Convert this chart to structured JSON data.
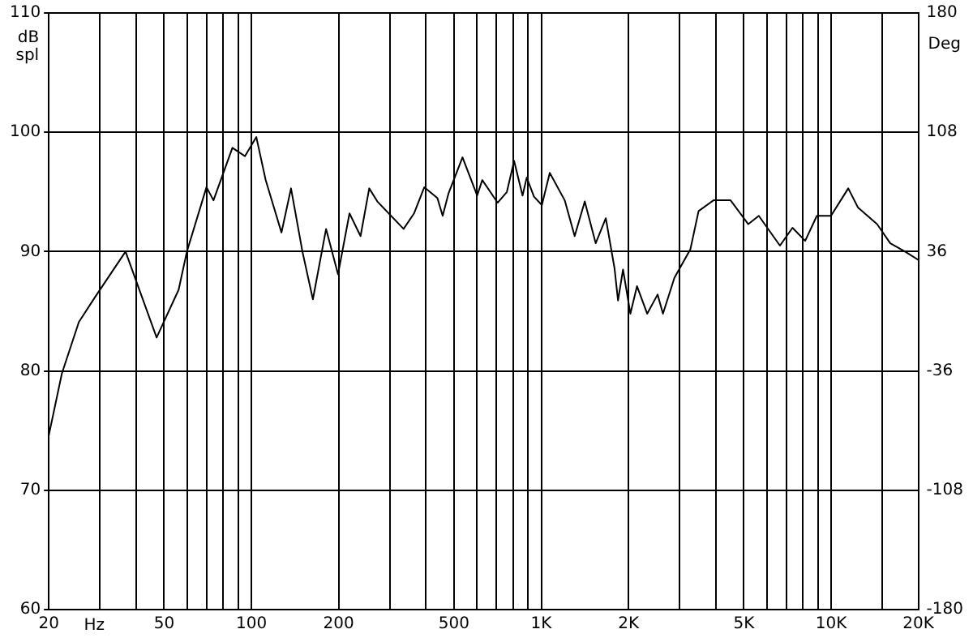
{
  "chart_data": {
    "type": "line",
    "xlabel": "Hz",
    "ylabel": "dB spl",
    "y2label": "Deg",
    "log": "x",
    "grid": true,
    "legend": false,
    "marker": "none",
    "line_style": "solid",
    "xlim": [
      20,
      20000
    ],
    "xticks": [
      20,
      {
        "value": 30,
        "label": null
      },
      {
        "value": 40,
        "label": null
      },
      50,
      {
        "value": 60,
        "label": null
      },
      {
        "value": 70,
        "label": null
      },
      {
        "value": 80,
        "label": null
      },
      {
        "value": 90,
        "label": null
      },
      100,
      200,
      {
        "value": 300,
        "label": null
      },
      {
        "value": 400,
        "label": null
      },
      500,
      {
        "value": 600,
        "label": null
      },
      {
        "value": 700,
        "label": null
      },
      {
        "value": 800,
        "label": null
      },
      {
        "value": 900,
        "label": null
      },
      {
        "value": 1000,
        "label": "1K"
      },
      {
        "value": 2000,
        "label": "2K"
      },
      {
        "value": 3000,
        "label": null
      },
      {
        "value": 4000,
        "label": null
      },
      {
        "value": 5000,
        "label": "5K"
      },
      {
        "value": 6000,
        "label": null
      },
      {
        "value": 7000,
        "label": null
      },
      {
        "value": 8000,
        "label": null
      },
      {
        "value": 9000,
        "label": null
      },
      {
        "value": 10000,
        "label": "10K"
      },
      {
        "value": 15000,
        "label": null
      },
      {
        "value": 20000,
        "label": "20K"
      }
    ],
    "ylim": [
      60,
      110
    ],
    "yticks": [
      60,
      70,
      80,
      90,
      100,
      110
    ],
    "y2lim": [
      -180,
      180
    ],
    "y2ticks": [
      -180,
      -108,
      -36,
      36,
      108,
      180
    ],
    "series": [
      {
        "color": "#000000",
        "x": [
          20,
          22.2,
          25.4,
          28.9,
          36.8,
          47.1,
          56.1,
          59.9,
          70,
          74,
          86,
          95,
          104,
          112,
          127,
          137,
          150,
          163,
          181,
          199,
          218,
          238,
          255,
          272,
          335,
          364,
          395,
          438,
          457,
          479,
          535,
          601,
          626,
          707,
          761,
          806,
          862,
          891,
          944,
          1005,
          1070,
          1205,
          1304,
          1413,
          1541,
          1670,
          1790,
          1840,
          1915,
          2030,
          2140,
          2320,
          2520,
          2630,
          2880,
          3270,
          3490,
          3930,
          4500,
          5180,
          5630,
          6660,
          7360,
          8140,
          8930,
          9990,
          11460,
          12380,
          14410,
          16000,
          18000,
          20000
        ],
        "values": [
          74.6,
          79.8,
          84.1,
          86.2,
          90.0,
          82.8,
          86.8,
          90.0,
          95.4,
          94.3,
          98.7,
          98.0,
          99.6,
          96.0,
          91.6,
          95.3,
          90.0,
          86.0,
          91.9,
          88.1,
          93.2,
          91.3,
          95.3,
          94.2,
          91.9,
          93.2,
          95.4,
          94.5,
          93.0,
          94.9,
          97.9,
          94.7,
          96.0,
          94.1,
          95.0,
          97.6,
          94.7,
          96.2,
          94.6,
          93.9,
          96.6,
          94.3,
          91.3,
          94.2,
          90.7,
          92.8,
          88.6,
          85.9,
          88.5,
          84.8,
          87.1,
          84.8,
          86.4,
          84.8,
          87.8,
          90.2,
          93.4,
          94.3,
          94.3,
          92.3,
          93.0,
          90.5,
          92.0,
          90.9,
          93.0,
          93.0,
          95.3,
          93.7,
          92.3,
          90.7,
          90.0,
          89.3
        ]
      }
    ]
  }
}
